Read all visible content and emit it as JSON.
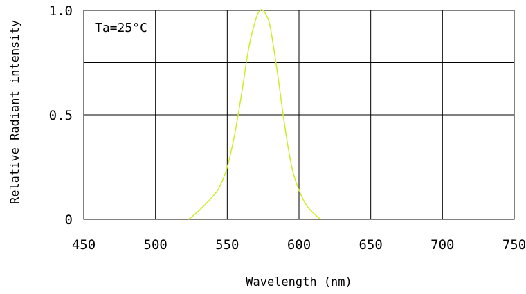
{
  "chart_data": {
    "type": "line",
    "xlabel": "Wavelength (nm)",
    "ylabel": "Relative Radiant intensity",
    "annotation": "Ta=25°C",
    "xlim": [
      450,
      750
    ],
    "ylim": [
      0,
      1.0
    ],
    "x_ticks": [
      450,
      500,
      550,
      600,
      650,
      700,
      750
    ],
    "x_tick_labels": [
      "450",
      "500",
      "550",
      "600",
      "650",
      "700",
      "750"
    ],
    "y_ticks": [
      0,
      0.5,
      1.0
    ],
    "y_tick_labels": [
      "0",
      "0.5",
      "1.0"
    ],
    "y_grid": [
      0.25,
      0.5,
      0.75
    ],
    "grid": true,
    "series": [
      {
        "color": "#c8f025",
        "x": [
          523,
          530,
          540,
          545,
          550,
          555,
          560,
          565,
          570,
          573,
          575,
          577,
          580,
          585,
          590,
          595,
          600,
          605,
          610,
          615
        ],
        "y": [
          0.0,
          0.04,
          0.11,
          0.16,
          0.25,
          0.4,
          0.6,
          0.82,
          0.96,
          1.0,
          1.0,
          0.98,
          0.92,
          0.7,
          0.45,
          0.25,
          0.14,
          0.07,
          0.03,
          0.0
        ]
      }
    ]
  }
}
